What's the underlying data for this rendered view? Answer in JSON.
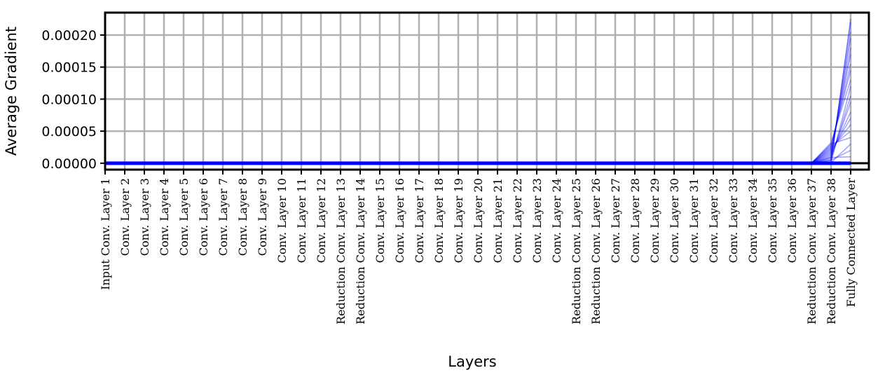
{
  "chart_data": {
    "type": "line",
    "title": "",
    "xlabel": "Layers",
    "ylabel": "Average Gradient",
    "ylim": [
      -1e-05,
      0.000235
    ],
    "yticks": [
      0,
      5e-05,
      0.0001,
      0.00015,
      0.0002
    ],
    "ytick_labels": [
      "0.00000",
      "0.00005",
      "0.00010",
      "0.00015",
      "0.00020"
    ],
    "grid": true,
    "line_color": "#0000ff",
    "categories": [
      "Input Conv. Layer 1",
      "Conv. Layer 2",
      "Conv. Layer 3",
      "Conv. Layer 4",
      "Conv. Layer 5",
      "Conv. Layer 6",
      "Conv. Layer 7",
      "Conv. Layer 8",
      "Conv. Layer 9",
      "Conv. Layer 10",
      "Conv. Layer 11",
      "Conv. Layer 12",
      "Reduction Conv. Layer 13",
      "Reduction Conv. Layer 14",
      "Conv. Layer 15",
      "Conv. Layer 16",
      "Conv. Layer 17",
      "Conv. Layer 18",
      "Conv. Layer 19",
      "Conv. Layer 20",
      "Conv. Layer 21",
      "Conv. Layer 22",
      "Conv. Layer 23",
      "Conv. Layer 24",
      "Reduction Conv. Layer 25",
      "Reduction Conv. Layer 26",
      "Conv. Layer 27",
      "Conv. Layer 28",
      "Conv. Layer 29",
      "Conv. Layer 30",
      "Conv. Layer 31",
      "Conv. Layer 32",
      "Conv. Layer 33",
      "Conv. Layer 34",
      "Conv. Layer 35",
      "Conv. Layer 36",
      "Reduction Conv. Layer 37",
      "Reduction Conv. Layer 38",
      "Fully Connected Layer"
    ],
    "series_note_values": {
      "layer_38_values": [
        0.0,
        4e-06,
        8e-06,
        1.2e-05,
        1.6e-05,
        2e-05,
        2.4e-05,
        2.8e-05,
        3.2e-05,
        2e-06,
        6e-06,
        1e-05,
        1.4e-05,
        1.8e-05,
        2.2e-05,
        2.6e-05,
        3e-05,
        1e-06,
        5e-06,
        9e-06
      ],
      "final_layer_values": [
        0.000225,
        0.00022,
        0.000205,
        0.000195,
        0.00018,
        0.00017,
        0.000155,
        0.000145,
        0.00013,
        0.00012,
        0.000105,
        9.5e-05,
        8e-05,
        7e-05,
        6e-05,
        5e-05,
        4e-05,
        3e-05,
        2e-05,
        1e-05
      ]
    }
  }
}
